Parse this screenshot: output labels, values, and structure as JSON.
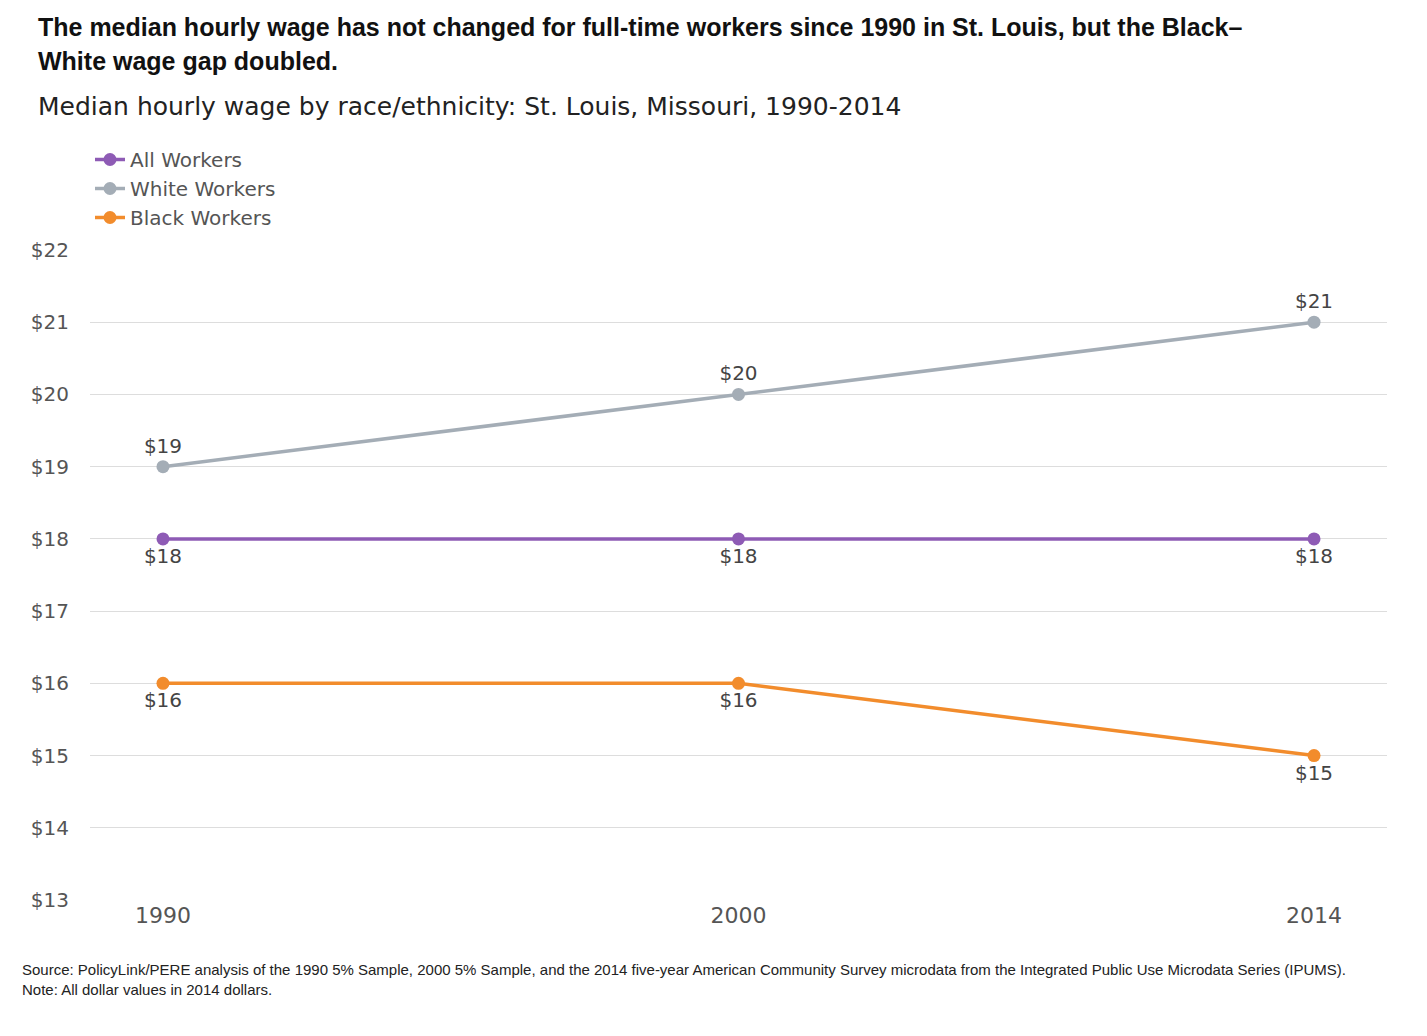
{
  "chart_data": {
    "type": "line",
    "title": "The median hourly wage has not changed for full-time workers since 1990 in St. Louis, but the Black–White wage gap doubled.",
    "subtitle": "Median hourly wage by race/ethnicity: St. Louis, Missouri, 1990-2014",
    "source": "Source: PolicyLink/PERE analysis of the 1990 5% Sample, 2000 5% Sample, and the 2014 five-year American Community Survey microdata from the Integrated Public Use Microdata Series (IPUMS).",
    "note": "Note: All dollar values in 2014 dollars.",
    "categories": [
      "1990",
      "2000",
      "2014"
    ],
    "series": [
      {
        "name": "All Workers",
        "color": "#8e5bb5",
        "values": [
          18,
          18,
          18
        ],
        "value_labels": [
          "$18",
          "$18",
          "$18"
        ]
      },
      {
        "name": "White Workers",
        "color": "#a4adb6",
        "values": [
          19,
          20,
          21
        ],
        "value_labels": [
          "$19",
          "$20",
          "$21"
        ]
      },
      {
        "name": "Black Workers",
        "color": "#f28c2c",
        "values": [
          16,
          16,
          15
        ],
        "value_labels": [
          "$16",
          "$16",
          "$15"
        ]
      }
    ],
    "ylim": [
      13,
      22
    ],
    "yticks": [
      {
        "value": 13,
        "label": "$13"
      },
      {
        "value": 14,
        "label": "$14"
      },
      {
        "value": 15,
        "label": "$15"
      },
      {
        "value": 16,
        "label": "$16"
      },
      {
        "value": 17,
        "label": "$17"
      },
      {
        "value": 18,
        "label": "$18"
      },
      {
        "value": 19,
        "label": "$19"
      },
      {
        "value": 20,
        "label": "$20"
      },
      {
        "value": 21,
        "label": "$21"
      },
      {
        "value": 22,
        "label": "$22"
      }
    ],
    "grid": true,
    "legend": "top-left",
    "data_labels": true,
    "marker": "circle"
  }
}
